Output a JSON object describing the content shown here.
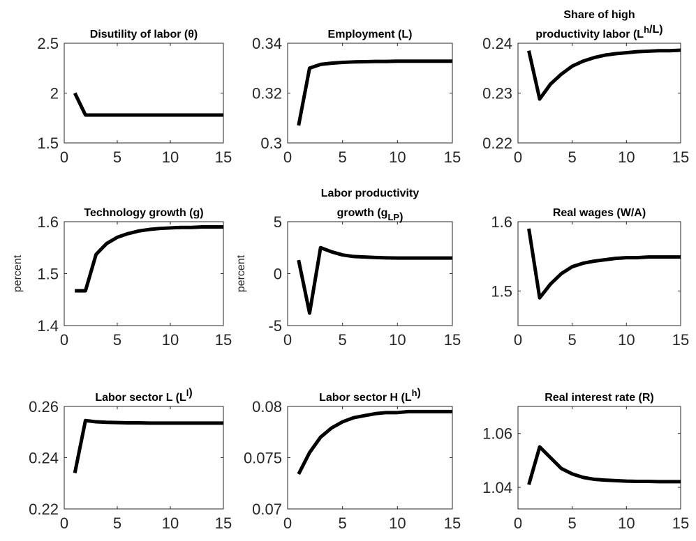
{
  "chart_data": [
    {
      "type": "line",
      "title": [
        [
          "Disutility of labor (θ)"
        ]
      ],
      "x": [
        1,
        2,
        3,
        4,
        5,
        6,
        7,
        8,
        9,
        10,
        11,
        12,
        13,
        14,
        15
      ],
      "xlim": [
        0,
        15
      ],
      "xticks": [
        0,
        5,
        10,
        15
      ],
      "ylim": [
        1.5,
        2.5
      ],
      "yticks": [
        1.5,
        2,
        2.5
      ],
      "color": "#000000",
      "values": [
        2.0,
        1.78,
        1.78,
        1.78,
        1.78,
        1.78,
        1.78,
        1.78,
        1.78,
        1.78,
        1.78,
        1.78,
        1.78,
        1.78,
        1.78
      ]
    },
    {
      "type": "line",
      "title": [
        [
          "Employment (L)"
        ]
      ],
      "x": [
        1,
        2,
        3,
        4,
        5,
        6,
        7,
        8,
        9,
        10,
        11,
        12,
        13,
        14,
        15
      ],
      "xlim": [
        0,
        15
      ],
      "xticks": [
        0,
        5,
        10,
        15
      ],
      "ylim": [
        0.3,
        0.34
      ],
      "yticks": [
        0.3,
        0.32,
        0.34
      ],
      "color": "#000000",
      "values": [
        0.307,
        0.33,
        0.3315,
        0.332,
        0.3323,
        0.3325,
        0.3326,
        0.3327,
        0.3327,
        0.3328,
        0.3328,
        0.3328,
        0.3328,
        0.3328,
        0.3328
      ]
    },
    {
      "type": "line",
      "title": [
        [
          "Share of high"
        ],
        [
          "productivity labor (L",
          {
            "sup": "h"
          },
          "/L)"
        ]
      ],
      "x": [
        1,
        2,
        3,
        4,
        5,
        6,
        7,
        8,
        9,
        10,
        11,
        12,
        13,
        14,
        15
      ],
      "xlim": [
        0,
        15
      ],
      "xticks": [
        0,
        5,
        10,
        15
      ],
      "ylim": [
        0.22,
        0.24
      ],
      "yticks": [
        0.22,
        0.23,
        0.24
      ],
      "color": "#000000",
      "values": [
        0.2385,
        0.2288,
        0.2318,
        0.2338,
        0.2354,
        0.2364,
        0.2371,
        0.2376,
        0.2379,
        0.2381,
        0.2383,
        0.2384,
        0.2385,
        0.2385,
        0.2386
      ]
    },
    {
      "type": "line",
      "title": [
        [
          "Technology growth (g)"
        ]
      ],
      "ylabel": "percent",
      "x": [
        1,
        2,
        3,
        4,
        5,
        6,
        7,
        8,
        9,
        10,
        11,
        12,
        13,
        14,
        15
      ],
      "xlim": [
        0,
        15
      ],
      "xticks": [
        0,
        5,
        10,
        15
      ],
      "ylim": [
        1.4,
        1.6
      ],
      "yticks": [
        1.4,
        1.5,
        1.6
      ],
      "color": "#000000",
      "values": [
        1.467,
        1.467,
        1.537,
        1.558,
        1.57,
        1.577,
        1.582,
        1.585,
        1.587,
        1.588,
        1.589,
        1.589,
        1.59,
        1.59,
        1.59
      ]
    },
    {
      "type": "line",
      "title": [
        [
          "Labor productivity"
        ],
        [
          "growth (g",
          {
            "sub": "LP"
          },
          ")"
        ]
      ],
      "ylabel": "percent",
      "x": [
        1,
        2,
        3,
        4,
        5,
        6,
        7,
        8,
        9,
        10,
        11,
        12,
        13,
        14,
        15
      ],
      "xlim": [
        0,
        15
      ],
      "xticks": [
        0,
        5,
        10,
        15
      ],
      "ylim": [
        -5,
        5
      ],
      "yticks": [
        -5,
        0,
        5
      ],
      "color": "#000000",
      "values": [
        1.3,
        -3.8,
        2.5,
        2.1,
        1.8,
        1.65,
        1.6,
        1.55,
        1.52,
        1.5,
        1.5,
        1.5,
        1.5,
        1.5,
        1.5
      ]
    },
    {
      "type": "line",
      "title": [
        [
          "Real wages (W/A)"
        ]
      ],
      "x": [
        1,
        2,
        3,
        4,
        5,
        6,
        7,
        8,
        9,
        10,
        11,
        12,
        13,
        14,
        15
      ],
      "xlim": [
        0,
        15
      ],
      "xticks": [
        0,
        5,
        10,
        15
      ],
      "ylim": [
        1.45,
        1.6
      ],
      "yticks": [
        1.5,
        1.6
      ],
      "color": "#000000",
      "values": [
        1.59,
        1.49,
        1.51,
        1.525,
        1.535,
        1.54,
        1.543,
        1.545,
        1.547,
        1.548,
        1.548,
        1.549,
        1.549,
        1.549,
        1.549
      ]
    },
    {
      "type": "line",
      "title": [
        [
          "Labor sector L  (L",
          {
            "sup": "l"
          },
          ")"
        ]
      ],
      "x": [
        1,
        2,
        3,
        4,
        5,
        6,
        7,
        8,
        9,
        10,
        11,
        12,
        13,
        14,
        15
      ],
      "xlim": [
        0,
        15
      ],
      "xticks": [
        0,
        5,
        10,
        15
      ],
      "ylim": [
        0.22,
        0.26
      ],
      "yticks": [
        0.22,
        0.24,
        0.26
      ],
      "color": "#000000",
      "values": [
        0.234,
        0.2545,
        0.254,
        0.2538,
        0.2537,
        0.2536,
        0.2536,
        0.2535,
        0.2535,
        0.2535,
        0.2535,
        0.2535,
        0.2535,
        0.2535,
        0.2535
      ]
    },
    {
      "type": "line",
      "title": [
        [
          "Labor sector H (L",
          {
            "sup": "h"
          },
          ")"
        ]
      ],
      "x": [
        1,
        2,
        3,
        4,
        5,
        6,
        7,
        8,
        9,
        10,
        11,
        12,
        13,
        14,
        15
      ],
      "xlim": [
        0,
        15
      ],
      "xticks": [
        0,
        5,
        10,
        15
      ],
      "ylim": [
        0.07,
        0.08
      ],
      "yticks": [
        0.07,
        0.075,
        0.08
      ],
      "color": "#000000",
      "values": [
        0.0734,
        0.0755,
        0.077,
        0.0779,
        0.0785,
        0.0789,
        0.0791,
        0.0793,
        0.0794,
        0.0794,
        0.0795,
        0.0795,
        0.0795,
        0.0795,
        0.0795
      ]
    },
    {
      "type": "line",
      "title": [
        [
          "Real interest rate (R)"
        ]
      ],
      "x": [
        1,
        2,
        3,
        4,
        5,
        6,
        7,
        8,
        9,
        10,
        11,
        12,
        13,
        14,
        15
      ],
      "xlim": [
        0,
        15
      ],
      "xticks": [
        0,
        5,
        10,
        15
      ],
      "ylim": [
        1.032,
        1.07
      ],
      "yticks": [
        1.04,
        1.06
      ],
      "color": "#000000",
      "values": [
        1.041,
        1.055,
        1.051,
        1.047,
        1.045,
        1.0437,
        1.043,
        1.0427,
        1.0425,
        1.0423,
        1.0422,
        1.0422,
        1.0421,
        1.0421,
        1.0421
      ]
    }
  ]
}
